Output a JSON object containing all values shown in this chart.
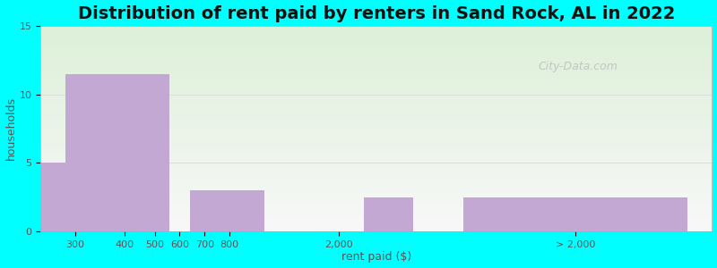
{
  "title": "Distribution of rent paid by renters in Sand Rock, AL in 2022",
  "xlabel": "rent paid ($)",
  "ylabel": "households",
  "bar_labels": [
    "300",
    "400",
    "500",
    "600",
    "700",
    "800",
    "2,000",
    "> 2,000"
  ],
  "bar_values": [
    5,
    11.5,
    11.5,
    0,
    3,
    0,
    0,
    2.5
  ],
  "bar_color": "#c4a8d4",
  "bar_edge_color": "#b090c0",
  "ylim": [
    0,
    15
  ],
  "yticks": [
    0,
    5,
    10,
    15
  ],
  "background_outer": "#00ffff",
  "background_inner_start": "#ddf0d8",
  "background_inner_end": "#f8f8f8",
  "title_fontsize": 14,
  "axis_label_fontsize": 9,
  "tick_fontsize": 8,
  "watermark_text": "City-Data.com"
}
